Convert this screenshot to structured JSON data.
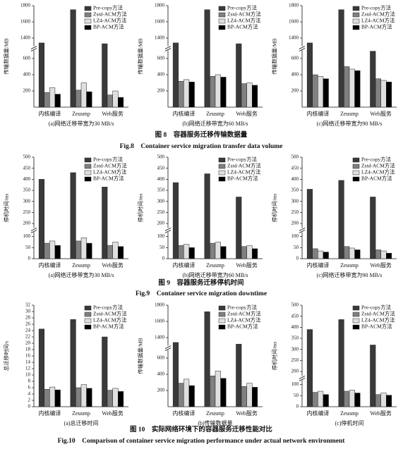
{
  "chart_data": [
    {
      "type": "bar",
      "ylabel": "传输数据量/MB",
      "xlabel": "(a)网络迁移带宽为30 MB/s",
      "categories": [
        "内核编译",
        "Zeusmp",
        "Web服务"
      ],
      "legend": "upper right",
      "series": [
        {
          "name": "Pre-copy方法",
          "color": "#3a3a3a",
          "values": [
            1340,
            1750,
            1330
          ]
        },
        {
          "name": "Zstd-ACM方法",
          "color": "#808080",
          "values": [
            180,
            210,
            150
          ]
        },
        {
          "name": "LZ4-ACM方法",
          "color": "#e0e0e0",
          "values": [
            240,
            300,
            200
          ]
        },
        {
          "name": "BP-ACM方法",
          "color": "#000000",
          "values": [
            160,
            190,
            120
          ]
        }
      ],
      "ylim": [
        0,
        1800
      ],
      "ybreak": [
        700,
        1300
      ],
      "yticks": [
        200,
        400,
        600,
        1400,
        1600,
        1800
      ]
    },
    {
      "type": "bar",
      "ylabel": "传输数据量/MB",
      "xlabel": "(b)网络迁移带宽为60 MB/s",
      "categories": [
        "内核编译",
        "Zeusmp",
        "Web服务"
      ],
      "legend": "upper right",
      "series": [
        {
          "name": "Pre-copy方法",
          "color": "#3a3a3a",
          "values": [
            1340,
            1750,
            1330
          ]
        },
        {
          "name": "Zstd-ACM方法",
          "color": "#808080",
          "values": [
            320,
            380,
            290
          ]
        },
        {
          "name": "LZ4-ACM方法",
          "color": "#e0e0e0",
          "values": [
            340,
            400,
            300
          ]
        },
        {
          "name": "BP-ACM方法",
          "color": "#000000",
          "values": [
            310,
            370,
            270
          ]
        }
      ],
      "ylim": [
        0,
        1800
      ],
      "ybreak": [
        700,
        1300
      ],
      "yticks": [
        200,
        400,
        600,
        1400,
        1600,
        1800
      ]
    },
    {
      "type": "bar",
      "ylabel": "传输数据量/MB",
      "xlabel": "(c)网络迁移带宽为90 MB/s",
      "categories": [
        "内核编译",
        "Zeusmp",
        "Web服务"
      ],
      "legend": "upper right",
      "series": [
        {
          "name": "Pre-copy方法",
          "color": "#3a3a3a",
          "values": [
            1340,
            1750,
            690
          ]
        },
        {
          "name": "Zstd-ACM方法",
          "color": "#808080",
          "values": [
            400,
            500,
            350
          ]
        },
        {
          "name": "LZ4-ACM方法",
          "color": "#e0e0e0",
          "values": [
            380,
            470,
            330
          ]
        },
        {
          "name": "BP-ACM方法",
          "color": "#000000",
          "values": [
            350,
            450,
            310
          ]
        }
      ],
      "ylim": [
        0,
        1800
      ],
      "ybreak": [
        700,
        1300
      ],
      "yticks": [
        200,
        400,
        600,
        1400,
        1600,
        1800
      ]
    },
    {
      "type": "bar",
      "ylabel": "停机时间/ms",
      "xlabel": "(a)网络迁移带宽为30 MB/s",
      "categories": [
        "内核编译",
        "Zeusmp",
        "Web服务"
      ],
      "legend": "upper right",
      "series": [
        {
          "name": "Pre-copy方法",
          "color": "#3a3a3a",
          "values": [
            400,
            430,
            365
          ]
        },
        {
          "name": "Zstd-ACM方法",
          "color": "#808080",
          "values": [
            70,
            80,
            60
          ]
        },
        {
          "name": "LZ4-ACM方法",
          "color": "#e0e0e0",
          "values": [
            80,
            95,
            75
          ]
        },
        {
          "name": "BP-ACM方法",
          "color": "#000000",
          "values": [
            60,
            70,
            55
          ]
        }
      ],
      "ylim": [
        0,
        500
      ],
      "ybreak": [
        120,
        180
      ],
      "yticks": [
        0,
        50,
        100,
        200,
        250,
        300,
        350,
        400,
        450,
        500
      ]
    },
    {
      "type": "bar",
      "ylabel": "停机时间/ms",
      "xlabel": "(b)网络迁移带宽为60 MB/s",
      "categories": [
        "内核编译",
        "Zeusmp",
        "Web服务"
      ],
      "legend": "upper right",
      "series": [
        {
          "name": "Pre-copy方法",
          "color": "#3a3a3a",
          "values": [
            385,
            425,
            320
          ]
        },
        {
          "name": "Zstd-ACM方法",
          "color": "#808080",
          "values": [
            60,
            70,
            55
          ]
        },
        {
          "name": "LZ4-ACM方法",
          "color": "#e0e0e0",
          "values": [
            65,
            75,
            60
          ]
        },
        {
          "name": "BP-ACM方法",
          "color": "#000000",
          "values": [
            50,
            55,
            45
          ]
        }
      ],
      "ylim": [
        0,
        500
      ],
      "ybreak": [
        120,
        180
      ],
      "yticks": [
        0,
        50,
        100,
        200,
        250,
        300,
        350,
        400,
        450,
        500
      ]
    },
    {
      "type": "bar",
      "ylabel": "停机时间/ms",
      "xlabel": "(c)网络迁移带宽为90 MB/s",
      "categories": [
        "内核编译",
        "Zeusmp",
        "Web服务"
      ],
      "legend": "upper right",
      "series": [
        {
          "name": "Pre-copy方法",
          "color": "#3a3a3a",
          "values": [
            355,
            395,
            320
          ]
        },
        {
          "name": "Zstd-ACM方法",
          "color": "#808080",
          "values": [
            45,
            55,
            40
          ]
        },
        {
          "name": "LZ4-ACM方法",
          "color": "#e0e0e0",
          "values": [
            35,
            48,
            35
          ]
        },
        {
          "name": "BP-ACM方法",
          "color": "#000000",
          "values": [
            30,
            40,
            25
          ]
        }
      ],
      "ylim": [
        0,
        500
      ],
      "ybreak": [
        120,
        180
      ],
      "yticks": [
        0,
        50,
        100,
        200,
        250,
        300,
        350,
        400,
        450,
        500
      ]
    },
    {
      "type": "bar",
      "ylabel": "总迁移时间/s",
      "xlabel": "(a)总迁移时间",
      "categories": [
        "内核编译",
        "Zeusmp",
        "Web服务"
      ],
      "legend": "upper right",
      "series": [
        {
          "name": "Pre-copy方法",
          "color": "#3a3a3a",
          "values": [
            24.5,
            27.5,
            22
          ]
        },
        {
          "name": "Zstd-ACM方法",
          "color": "#808080",
          "values": [
            5.5,
            6,
            5.2
          ]
        },
        {
          "name": "LZ4-ACM方法",
          "color": "#e0e0e0",
          "values": [
            6.2,
            7,
            5.8
          ]
        },
        {
          "name": "BP-ACM方法",
          "color": "#000000",
          "values": [
            5.3,
            5.8,
            4.8
          ]
        }
      ],
      "ylim": [
        0,
        32
      ],
      "yticks": [
        0,
        2,
        4,
        6,
        8,
        10,
        12,
        14,
        16,
        18,
        20,
        22,
        24,
        26,
        28,
        30,
        32
      ]
    },
    {
      "type": "bar",
      "ylabel": "传输数据量/MB",
      "xlabel": "(b)传输数据量",
      "categories": [
        "内核编译",
        "Zeusmp",
        "Web服务"
      ],
      "legend": "upper right",
      "series": [
        {
          "name": "Pre-copy方法",
          "color": "#3a3a3a",
          "values": [
            1340,
            1720,
            1320
          ]
        },
        {
          "name": "Zstd-ACM方法",
          "color": "#808080",
          "values": [
            290,
            380,
            250
          ]
        },
        {
          "name": "LZ4-ACM方法",
          "color": "#e0e0e0",
          "values": [
            340,
            440,
            290
          ]
        },
        {
          "name": "BP-ACM方法",
          "color": "#000000",
          "values": [
            260,
            350,
            240
          ]
        }
      ],
      "ylim": [
        0,
        1800
      ],
      "ybreak": [
        700,
        1300
      ],
      "yticks": [
        200,
        400,
        600,
        1400,
        1600,
        1800
      ]
    },
    {
      "type": "bar",
      "ylabel": "停机时间/ms",
      "xlabel": "(c)停机时间",
      "categories": [
        "内核编译",
        "Zeusmp",
        "Web服务"
      ],
      "legend": "upper right",
      "series": [
        {
          "name": "Pre-copy方法",
          "color": "#3a3a3a",
          "values": [
            390,
            435,
            320
          ]
        },
        {
          "name": "Zstd-ACM方法",
          "color": "#808080",
          "values": [
            65,
            70,
            55
          ]
        },
        {
          "name": "LZ4-ACM方法",
          "color": "#e0e0e0",
          "values": [
            70,
            75,
            62
          ]
        },
        {
          "name": "BP-ACM方法",
          "color": "#000000",
          "values": [
            55,
            62,
            52
          ]
        }
      ],
      "ylim": [
        0,
        500
      ],
      "ybreak": [
        120,
        180
      ],
      "yticks": [
        0,
        50,
        100,
        200,
        250,
        300,
        350,
        400,
        450,
        500
      ]
    }
  ],
  "figures": [
    {
      "caption_cn": "图 8　容器服务迁移传输数据量",
      "caption_en": "Fig.8　Container service migration transfer data volume"
    },
    {
      "caption_cn": "图 9　容器服务迁移停机时间",
      "caption_en": "Fig.9　Container service migration downtime"
    },
    {
      "caption_cn": "图 10　实际网络环境下的容器服务迁移性能对比",
      "caption_en": "Fig.10　Comparison of container service migration performance under actual network environment"
    }
  ]
}
